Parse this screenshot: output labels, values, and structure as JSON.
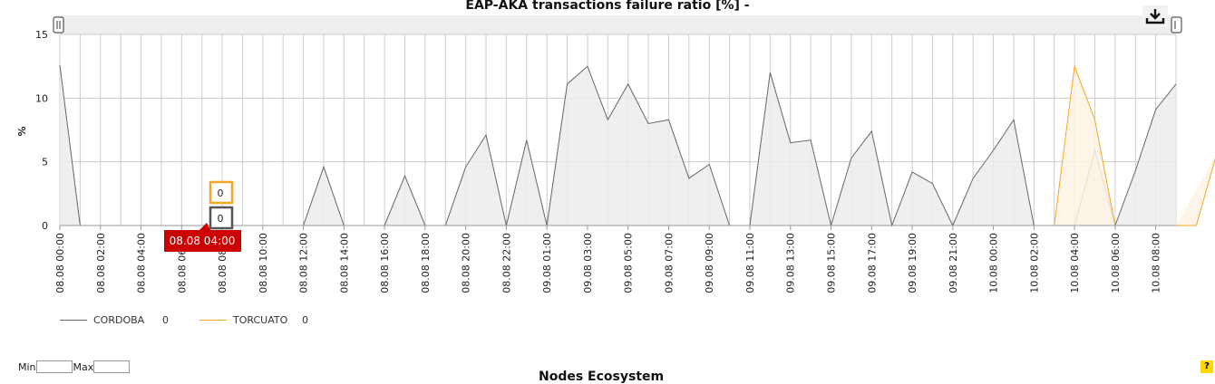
{
  "chart_data": {
    "type": "area",
    "title": "EAP-AKA transactions failure ratio [%] -",
    "ylabel": "%",
    "ylim": [
      0,
      15
    ],
    "yticks": [
      0,
      5,
      10,
      15
    ],
    "xtick_labels": [
      "08.08 00:00",
      "08.08 02:00",
      "08.08 04:00",
      "08.08 06:00",
      "08.08 08:00",
      "08.08 10:00",
      "08.08 12:00",
      "08.08 14:00",
      "08.08 16:00",
      "08.08 18:00",
      "08.08 20:00",
      "08.08 22:00",
      "09.08 01:00",
      "09.08 03:00",
      "09.08 05:00",
      "09.08 07:00",
      "09.08 09:00",
      "09.08 11:00",
      "09.08 13:00",
      "09.08 15:00",
      "09.08 17:00",
      "09.08 19:00",
      "09.08 21:00",
      "10.08 00:00",
      "10.08 02:00",
      "10.08 04:00",
      "10.08 06:00",
      "10.08 08:00"
    ],
    "grid": true,
    "legend_position": "bottom-left",
    "series": [
      {
        "name": "CORDOBA",
        "color": "#666666",
        "fill": "#ececec",
        "values": [
          12.6,
          0,
          0,
          0,
          0,
          0,
          0,
          0,
          0,
          0,
          0,
          0,
          0,
          4.6,
          0,
          0,
          0,
          3.9,
          0,
          0,
          4.6,
          7.1,
          0,
          6.7,
          0,
          11.1,
          12.5,
          8.3,
          11.1,
          8.0,
          8.3,
          3.7,
          4.8,
          0,
          0,
          12.0,
          6.5,
          6.7,
          0,
          5.3,
          7.4,
          0,
          4.2,
          3.3,
          0,
          3.7,
          5.9,
          8.3,
          0,
          0,
          0,
          5.9,
          0,
          4.3,
          9.1,
          11.1
        ]
      },
      {
        "name": "TORCUATO",
        "color": "#f5a623",
        "fill": "#fdf3e3",
        "values": [
          0,
          0,
          0,
          0,
          0,
          0,
          0,
          0,
          0,
          0,
          0,
          0,
          0,
          0,
          0,
          0,
          0,
          0,
          0,
          0,
          0,
          0,
          0,
          0,
          0,
          0,
          0,
          0,
          0,
          0,
          0,
          0,
          0,
          0,
          0,
          0,
          0,
          0,
          0,
          0,
          0,
          0,
          0,
          0,
          0,
          0,
          0,
          0,
          0,
          0,
          12.5,
          8.3,
          0,
          0,
          0,
          0,
          0,
          5.6
        ]
      }
    ],
    "tooltip": {
      "x_label": "08.08 04:00",
      "values": [
        "0",
        "0"
      ]
    }
  },
  "legend": [
    {
      "name": "CORDOBA",
      "value": "0"
    },
    {
      "name": "TORCUATO",
      "value": "0"
    }
  ],
  "controls": {
    "min_label": "Min",
    "max_label": "Max",
    "help_label": "?",
    "download_icon": "download-icon"
  },
  "next_section_title": "Nodes Ecosystem"
}
